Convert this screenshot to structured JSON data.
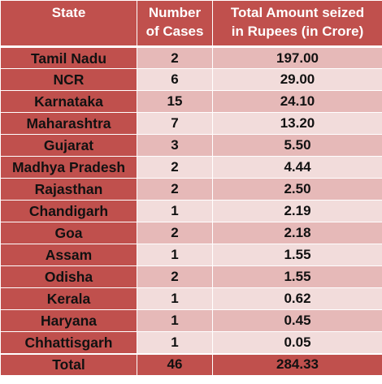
{
  "colors": {
    "header_bg": "#c0504d",
    "header_text": "#ffffff",
    "row_odd_bg": "#e6b9b8",
    "row_even_bg": "#f2dcdb",
    "state_col_bg": "#c0504d",
    "border": "#ffffff"
  },
  "table": {
    "headers": {
      "state": "State",
      "cases_line1": "Number",
      "cases_line2": "of Cases",
      "amount_line1": "Total Amount seized",
      "amount_line2": "in Rupees (in Crore)"
    },
    "rows": [
      {
        "state": "Tamil Nadu",
        "cases": "2",
        "amount": "197.00"
      },
      {
        "state": "NCR",
        "cases": "6",
        "amount": "29.00"
      },
      {
        "state": "Karnataka",
        "cases": "15",
        "amount": "24.10"
      },
      {
        "state": "Maharashtra",
        "cases": "7",
        "amount": "13.20"
      },
      {
        "state": "Gujarat",
        "cases": "3",
        "amount": "5.50"
      },
      {
        "state": "Madhya Pradesh",
        "cases": "2",
        "amount": "4.44"
      },
      {
        "state": "Rajasthan",
        "cases": "2",
        "amount": "2.50"
      },
      {
        "state": "Chandigarh",
        "cases": "1",
        "amount": "2.19"
      },
      {
        "state": "Goa",
        "cases": "2",
        "amount": "2.18"
      },
      {
        "state": "Assam",
        "cases": "1",
        "amount": "1.55"
      },
      {
        "state": "Odisha",
        "cases": "2",
        "amount": "1.55"
      },
      {
        "state": "Kerala",
        "cases": "1",
        "amount": "0.62"
      },
      {
        "state": "Haryana",
        "cases": "1",
        "amount": "0.45"
      },
      {
        "state": "Chhattisgarh",
        "cases": "1",
        "amount": "0.05"
      }
    ],
    "total": {
      "state": "Total",
      "cases": "46",
      "amount": "284.33"
    }
  }
}
